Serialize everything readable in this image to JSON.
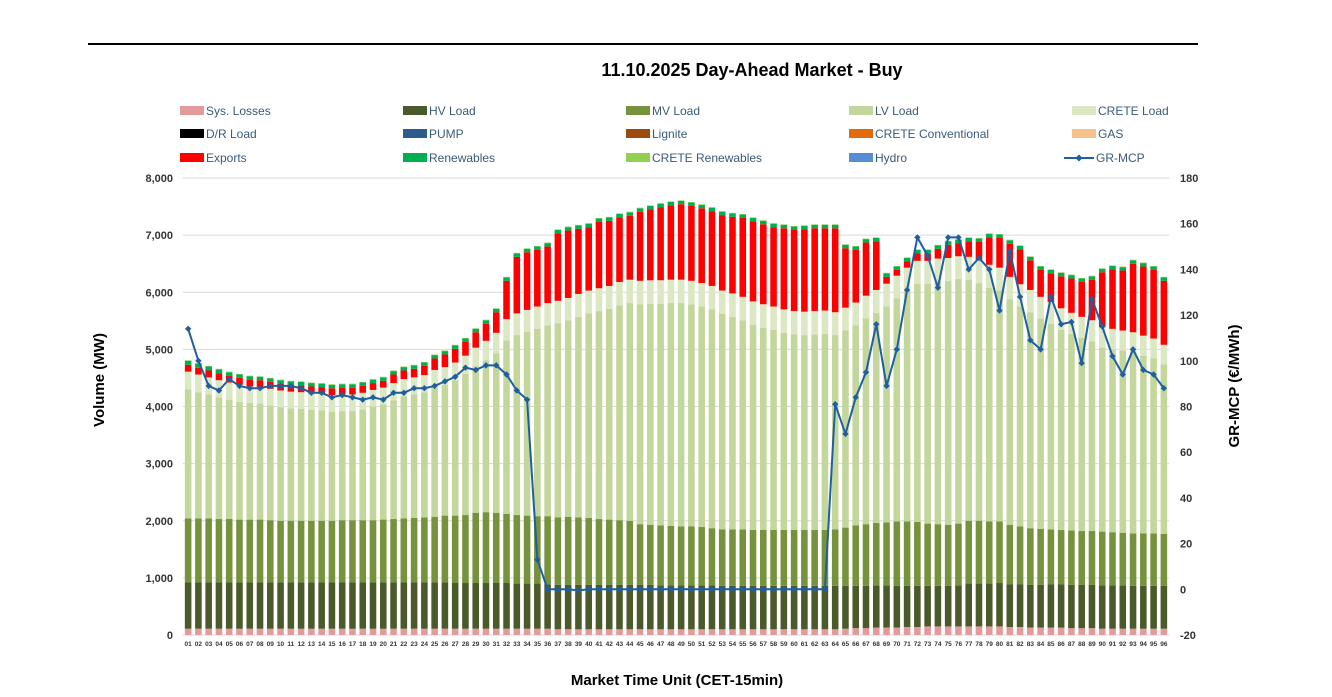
{
  "chart_data": {
    "type": "bar",
    "stacked": true,
    "title": "11.10.2025  Day-Ahead Market - Buy",
    "xlabel": "Market Time Unit (CET-15min)",
    "ylabel": "Volume (MW)",
    "y2label": "GR-MCP (€/MWh)",
    "ylim": [
      0,
      8000
    ],
    "y2lim": [
      -20,
      180
    ],
    "yticks": [
      "0",
      "1,000",
      "2,000",
      "3,000",
      "4,000",
      "5,000",
      "6,000",
      "7,000",
      "8,000"
    ],
    "y2ticks": [
      "-20",
      "0",
      "20",
      "40",
      "60",
      "80",
      "100",
      "120",
      "140",
      "160",
      "180"
    ],
    "categories": [
      "01",
      "02",
      "03",
      "04",
      "05",
      "06",
      "07",
      "08",
      "09",
      "10",
      "11",
      "12",
      "13",
      "14",
      "15",
      "16",
      "17",
      "18",
      "19",
      "20",
      "21",
      "22",
      "23",
      "24",
      "25",
      "26",
      "27",
      "28",
      "29",
      "30",
      "31",
      "32",
      "33",
      "34",
      "35",
      "36",
      "37",
      "38",
      "39",
      "40",
      "41",
      "42",
      "43",
      "44",
      "45",
      "46",
      "47",
      "48",
      "49",
      "50",
      "51",
      "52",
      "53",
      "54",
      "55",
      "56",
      "57",
      "58",
      "59",
      "60",
      "61",
      "62",
      "63",
      "64",
      "65",
      "66",
      "67",
      "68",
      "69",
      "70",
      "71",
      "72",
      "73",
      "74",
      "75",
      "76",
      "77",
      "78",
      "79",
      "80",
      "81",
      "82",
      "83",
      "84",
      "85",
      "86",
      "87",
      "88",
      "89",
      "90",
      "91",
      "92",
      "93",
      "94",
      "95",
      "96"
    ],
    "legend": [
      {
        "name": "Sys. Losses",
        "color": "#e39a9a",
        "kind": "box"
      },
      {
        "name": "HV Load",
        "color": "#4b5a2a",
        "kind": "box"
      },
      {
        "name": "MV Load",
        "color": "#76923c",
        "kind": "box"
      },
      {
        "name": "LV Load",
        "color": "#c3d69b",
        "kind": "box"
      },
      {
        "name": "CRETE Load",
        "color": "#dbe8c3",
        "kind": "box"
      },
      {
        "name": "D/R Load",
        "color": "#000000",
        "kind": "box"
      },
      {
        "name": "PUMP",
        "color": "#2e5b8e",
        "kind": "box"
      },
      {
        "name": "Lignite",
        "color": "#9c4a10",
        "kind": "box"
      },
      {
        "name": "CRETE Conventional",
        "color": "#e36c0a",
        "kind": "box"
      },
      {
        "name": "GAS",
        "color": "#f6c28c",
        "kind": "box"
      },
      {
        "name": "Exports",
        "color": "#ff0000",
        "kind": "box"
      },
      {
        "name": "Renewables",
        "color": "#00b050",
        "kind": "box"
      },
      {
        "name": "CRETE Renewables",
        "color": "#92d050",
        "kind": "box"
      },
      {
        "name": "Hydro",
        "color": "#558ed5",
        "kind": "box"
      },
      {
        "name": "GR-MCP",
        "color": "#1f5f9f",
        "kind": "line"
      }
    ],
    "series": [
      {
        "name": "Sys. Losses",
        "color": "#e39a9a",
        "values": [
          110,
          110,
          110,
          110,
          110,
          110,
          110,
          110,
          110,
          110,
          110,
          110,
          110,
          110,
          110,
          110,
          110,
          110,
          110,
          110,
          110,
          110,
          110,
          110,
          110,
          110,
          110,
          110,
          110,
          110,
          110,
          110,
          110,
          110,
          110,
          110,
          100,
          100,
          100,
          100,
          100,
          100,
          100,
          100,
          100,
          100,
          100,
          100,
          100,
          100,
          100,
          100,
          100,
          100,
          100,
          100,
          100,
          100,
          100,
          100,
          100,
          100,
          100,
          100,
          110,
          120,
          120,
          130,
          130,
          130,
          140,
          140,
          150,
          150,
          150,
          150,
          150,
          150,
          150,
          150,
          140,
          140,
          130,
          130,
          130,
          130,
          120,
          120,
          120,
          110,
          110,
          110,
          110,
          110,
          110,
          110
        ]
      },
      {
        "name": "HV Load",
        "color": "#4b5a2a",
        "values": [
          810,
          810,
          810,
          810,
          810,
          810,
          810,
          810,
          810,
          810,
          810,
          810,
          810,
          810,
          810,
          810,
          810,
          810,
          810,
          810,
          810,
          810,
          810,
          810,
          810,
          810,
          800,
          800,
          800,
          800,
          800,
          800,
          790,
          790,
          790,
          780,
          780,
          780,
          780,
          780,
          780,
          780,
          780,
          780,
          780,
          780,
          770,
          770,
          770,
          770,
          770,
          770,
          760,
          760,
          760,
          760,
          760,
          760,
          760,
          760,
          760,
          760,
          760,
          760,
          750,
          740,
          740,
          740,
          740,
          730,
          720,
          720,
          710,
          710,
          710,
          720,
          750,
          750,
          750,
          760,
          750,
          750,
          750,
          750,
          760,
          760,
          760,
          760,
          760,
          760,
          760,
          760,
          750,
          750,
          750,
          750
        ]
      },
      {
        "name": "MV Load",
        "color": "#76923c",
        "values": [
          1120,
          1120,
          1120,
          1110,
          1110,
          1100,
          1100,
          1100,
          1090,
          1080,
          1080,
          1080,
          1080,
          1080,
          1080,
          1090,
          1090,
          1090,
          1090,
          1100,
          1110,
          1120,
          1130,
          1140,
          1150,
          1170,
          1180,
          1190,
          1230,
          1240,
          1230,
          1210,
          1200,
          1190,
          1180,
          1190,
          1180,
          1190,
          1180,
          1170,
          1150,
          1140,
          1130,
          1120,
          1060,
          1050,
          1050,
          1040,
          1030,
          1030,
          1020,
          1000,
          990,
          990,
          990,
          980,
          980,
          980,
          980,
          980,
          980,
          980,
          980,
          990,
          1020,
          1060,
          1080,
          1090,
          1100,
          1130,
          1130,
          1120,
          1090,
          1080,
          1070,
          1080,
          1100,
          1100,
          1090,
          1080,
          1040,
          1010,
          990,
          980,
          960,
          950,
          950,
          940,
          940,
          940,
          930,
          920,
          920,
          920,
          920,
          910
        ]
      },
      {
        "name": "LV Load",
        "color": "#c3d69b",
        "values": [
          2260,
          2210,
          2170,
          2130,
          2090,
          2060,
          2040,
          2030,
          2010,
          1990,
          1970,
          1960,
          1940,
          1930,
          1910,
          1910,
          1910,
          1940,
          1990,
          2020,
          2080,
          2140,
          2160,
          2190,
          2260,
          2290,
          2370,
          2470,
          2560,
          2660,
          2790,
          3040,
          3150,
          3220,
          3280,
          3340,
          3400,
          3440,
          3510,
          3580,
          3640,
          3690,
          3760,
          3810,
          3850,
          3870,
          3880,
          3900,
          3910,
          3890,
          3860,
          3830,
          3770,
          3720,
          3660,
          3590,
          3540,
          3500,
          3450,
          3420,
          3410,
          3420,
          3430,
          3400,
          3450,
          3500,
          3600,
          3680,
          3780,
          3900,
          4040,
          4170,
          4200,
          4250,
          4270,
          4280,
          4220,
          4160,
          4090,
          4040,
          3950,
          3850,
          3780,
          3680,
          3600,
          3500,
          3440,
          3380,
          3320,
          3220,
          3200,
          3190,
          3170,
          3110,
          3060,
          2970
        ]
      },
      {
        "name": "CRETE Load",
        "color": "#dbe8c3",
        "values": [
          310,
          310,
          300,
          300,
          300,
          300,
          290,
          290,
          290,
          290,
          290,
          290,
          290,
          290,
          290,
          290,
          290,
          290,
          290,
          290,
          300,
          300,
          300,
          300,
          310,
          310,
          310,
          320,
          330,
          340,
          360,
          370,
          380,
          380,
          390,
          390,
          390,
          390,
          400,
          400,
          400,
          400,
          410,
          410,
          410,
          410,
          410,
          410,
          410,
          410,
          410,
          410,
          410,
          410,
          410,
          410,
          410,
          410,
          410,
          410,
          410,
          410,
          410,
          400,
          400,
          400,
          400,
          400,
          400,
          400,
          400,
          400,
          400,
          400,
          400,
          400,
          400,
          400,
          400,
          400,
          390,
          390,
          390,
          380,
          380,
          380,
          370,
          370,
          370,
          360,
          360,
          350,
          350,
          350,
          350,
          340
        ]
      },
      {
        "name": "D/R Load",
        "color": "#000000",
        "values": [
          0,
          0,
          0,
          0,
          0,
          0,
          0,
          0,
          0,
          0,
          0,
          0,
          0,
          0,
          0,
          0,
          0,
          0,
          0,
          0,
          0,
          0,
          0,
          0,
          0,
          0,
          0,
          0,
          0,
          0,
          0,
          0,
          0,
          0,
          0,
          0,
          0,
          0,
          0,
          0,
          0,
          0,
          0,
          0,
          0,
          0,
          0,
          0,
          0,
          0,
          0,
          0,
          0,
          0,
          0,
          0,
          0,
          0,
          0,
          0,
          0,
          0,
          0,
          0,
          0,
          0,
          0,
          0,
          0,
          0,
          0,
          0,
          0,
          0,
          0,
          0,
          0,
          0,
          0,
          0,
          0,
          0,
          0,
          0,
          0,
          0,
          0,
          0,
          0,
          0,
          0,
          0,
          0,
          0,
          0,
          0
        ]
      },
      {
        "name": "PUMP",
        "color": "#2e5b8e",
        "values": [
          0,
          0,
          0,
          0,
          0,
          0,
          0,
          0,
          0,
          0,
          0,
          0,
          0,
          0,
          0,
          0,
          0,
          0,
          0,
          0,
          0,
          0,
          0,
          0,
          0,
          0,
          0,
          0,
          0,
          0,
          0,
          0,
          0,
          0,
          0,
          0,
          0,
          0,
          0,
          0,
          0,
          0,
          0,
          0,
          0,
          0,
          0,
          0,
          0,
          0,
          0,
          0,
          0,
          0,
          0,
          0,
          0,
          0,
          0,
          0,
          0,
          0,
          0,
          0,
          0,
          0,
          0,
          0,
          0,
          0,
          0,
          0,
          0,
          0,
          0,
          0,
          0,
          0,
          0,
          0,
          0,
          0,
          0,
          0,
          0,
          0,
          0,
          0,
          0,
          0,
          0,
          0,
          0,
          0,
          0,
          0
        ]
      },
      {
        "name": "Exports",
        "color": "#ff0000",
        "values": [
          120,
          120,
          120,
          120,
          120,
          120,
          120,
          120,
          120,
          120,
          120,
          120,
          120,
          120,
          120,
          120,
          120,
          120,
          120,
          120,
          150,
          150,
          150,
          160,
          200,
          220,
          240,
          240,
          270,
          300,
          360,
          670,
          990,
          1010,
          990,
          990,
          1180,
          1180,
          1140,
          1110,
          1160,
          1140,
          1130,
          1120,
          1210,
          1240,
          1280,
          1300,
          1320,
          1310,
          1310,
          1310,
          1320,
          1340,
          1380,
          1400,
          1400,
          1390,
          1420,
          1420,
          1440,
          1450,
          1440,
          1470,
          1040,
          920,
          930,
          850,
          120,
          100,
          110,
          130,
          130,
          170,
          230,
          230,
          270,
          320,
          480,
          520,
          580,
          610,
          520,
          470,
          500,
          560,
          600,
          610,
          710,
          960,
          1040,
          1050,
          1200,
          1210,
          1200,
          1120
        ]
      },
      {
        "name": "Renewables",
        "color": "#00b050",
        "values": [
          70,
          70,
          70,
          70,
          60,
          60,
          60,
          60,
          60,
          60,
          60,
          60,
          60,
          60,
          60,
          60,
          60,
          60,
          60,
          60,
          60,
          60,
          60,
          60,
          60,
          60,
          60,
          60,
          60,
          60,
          60,
          60,
          60,
          60,
          60,
          60,
          60,
          60,
          60,
          60,
          60,
          60,
          60,
          60,
          60,
          60,
          60,
          60,
          60,
          60,
          60,
          60,
          60,
          60,
          60,
          60,
          60,
          60,
          60,
          60,
          60,
          60,
          60,
          60,
          60,
          60,
          60,
          60,
          60,
          60,
          60,
          60,
          60,
          60,
          60,
          60,
          60,
          60,
          60,
          60,
          60,
          60,
          60,
          60,
          60,
          60,
          60,
          60,
          60,
          60,
          60,
          60,
          60,
          60,
          60,
          60
        ]
      },
      {
        "name": "CRETE Renewables",
        "color": "#92d050",
        "values": [
          10,
          10,
          10,
          10,
          10,
          10,
          10,
          10,
          10,
          10,
          10,
          10,
          10,
          10,
          10,
          10,
          10,
          10,
          10,
          10,
          10,
          10,
          10,
          10,
          10,
          10,
          10,
          10,
          10,
          10,
          10,
          10,
          10,
          10,
          10,
          10,
          10,
          10,
          10,
          10,
          10,
          10,
          10,
          10,
          10,
          10,
          10,
          10,
          10,
          10,
          10,
          10,
          10,
          10,
          10,
          10,
          10,
          10,
          10,
          10,
          10,
          10,
          10,
          10,
          10,
          10,
          10,
          10,
          10,
          10,
          10,
          10,
          10,
          10,
          10,
          10,
          10,
          10,
          10,
          10,
          10,
          10,
          10,
          10,
          10,
          10,
          10,
          10,
          10,
          10,
          10,
          10,
          10,
          10,
          10,
          10
        ]
      }
    ],
    "line": {
      "name": "GR-MCP",
      "axis": "right",
      "color": "#1f5f9f",
      "values": [
        114,
        100,
        89,
        87,
        92,
        89,
        88,
        88,
        89,
        89,
        89,
        88,
        86,
        86,
        84,
        85,
        84,
        83,
        84,
        83,
        86,
        86,
        88,
        88,
        89,
        91,
        93,
        97,
        96,
        98,
        98,
        94,
        87,
        83,
        13,
        0,
        0,
        0,
        -0.5,
        0,
        0,
        0,
        0,
        0,
        0,
        0,
        0,
        0,
        0,
        0,
        0,
        0,
        0,
        0,
        0,
        0,
        0,
        0,
        0,
        0,
        0,
        0,
        0,
        81,
        68,
        84,
        95,
        116,
        89,
        105,
        131,
        154,
        146,
        132,
        154,
        154,
        140,
        145,
        140,
        122,
        148,
        128,
        109,
        105,
        128,
        116,
        117,
        99,
        127,
        115,
        102,
        94,
        105,
        96,
        94,
        88
      ]
    }
  }
}
